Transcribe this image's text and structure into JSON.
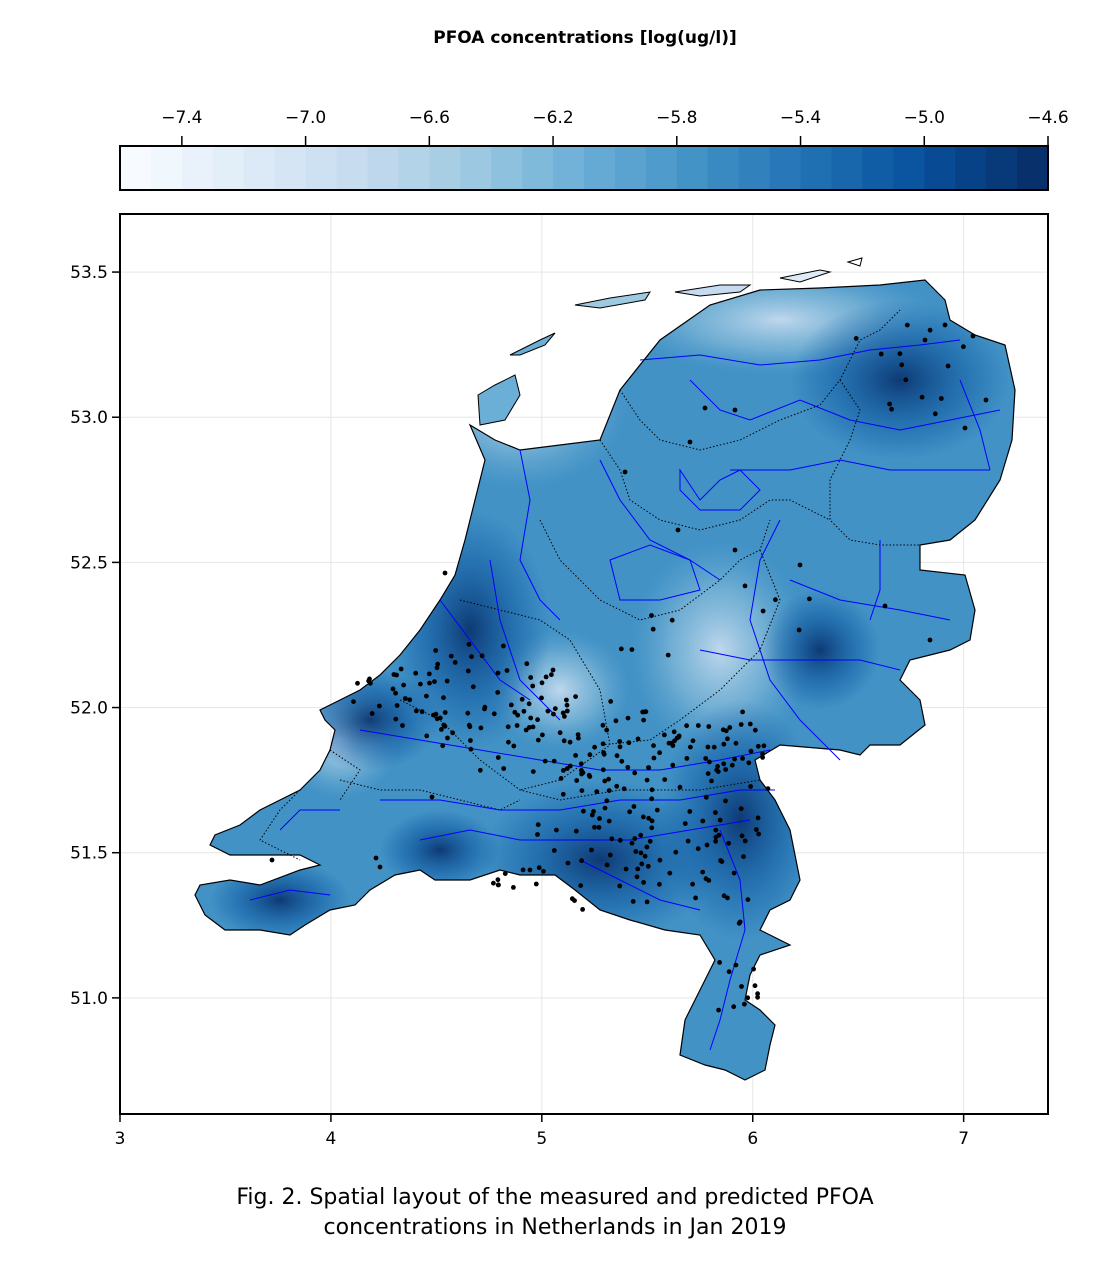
{
  "colorbar": {
    "title": "PFOA concentrations [log(ug/l)]",
    "min": -7.6,
    "max": -4.6,
    "ticks": [
      "−7.4",
      "−7.0",
      "−6.6",
      "−6.2",
      "−5.8",
      "−5.4",
      "−5.0",
      "−4.6"
    ],
    "tick_values": [
      -7.4,
      -7.0,
      -6.6,
      -6.2,
      -5.8,
      -5.4,
      -5.0,
      -4.6
    ],
    "levels": 30,
    "colors": [
      "#f7fbff",
      "#deebf7",
      "#c6dbef",
      "#9ecae1",
      "#6baed6",
      "#4292c6",
      "#2171b5",
      "#08519c",
      "#08306b"
    ]
  },
  "map": {
    "xlim": [
      3.0,
      7.4
    ],
    "ylim": [
      50.6,
      53.7
    ],
    "x_ticks": [
      "3",
      "4",
      "5",
      "6",
      "7"
    ],
    "x_tick_values": [
      3,
      4,
      5,
      6,
      7
    ],
    "y_ticks": [
      "51.0",
      "51.5",
      "52.0",
      "52.5",
      "53.0",
      "53.5"
    ],
    "y_tick_values": [
      51.0,
      51.5,
      52.0,
      52.5,
      53.0,
      53.5
    ],
    "grid": true,
    "river_color": "#0000ff",
    "point_color": "#000000",
    "border_color": "#000000"
  },
  "caption": {
    "line1": "Fig. 2. Spatial layout of the measured and predicted PFOA",
    "line2": "concentrations in Netherlands in Jan 2019"
  }
}
